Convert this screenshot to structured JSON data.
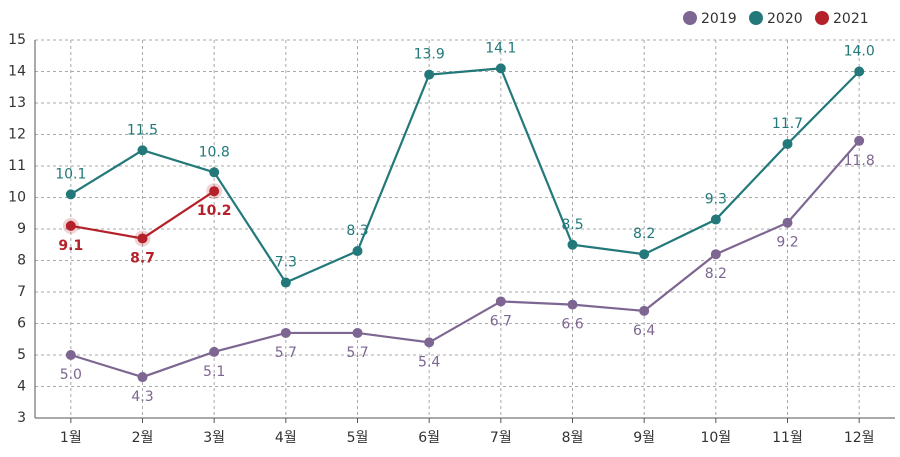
{
  "chart_data": {
    "type": "line",
    "categories": [
      "1월",
      "2월",
      "3월",
      "4월",
      "5월",
      "6월",
      "7월",
      "8월",
      "9월",
      "10월",
      "11월",
      "12월"
    ],
    "series": [
      {
        "name": "2019",
        "color": "#7d6691",
        "values": [
          5.0,
          4.3,
          5.1,
          5.7,
          5.7,
          5.4,
          6.7,
          6.6,
          6.4,
          8.2,
          9.2,
          11.8
        ],
        "value_labels": [
          "5.0",
          "4.3",
          "5.1",
          "5.7",
          "5.7",
          "5.4",
          "6.7",
          "6.6",
          "6.4",
          "8.2",
          "9.2",
          "11.8"
        ]
      },
      {
        "name": "2020",
        "color": "#23797a",
        "values": [
          10.1,
          11.5,
          10.8,
          7.3,
          8.3,
          13.9,
          14.1,
          8.5,
          8.2,
          9.3,
          11.7,
          14.0
        ],
        "value_labels": [
          "10.1",
          "11.5",
          "10.8",
          "7.3",
          "8.3",
          "13.9",
          "14.1",
          "8.5",
          "8.2",
          "9.3",
          "11.7",
          "14.0"
        ]
      },
      {
        "name": "2021",
        "color": "#b5212a",
        "values": [
          9.1,
          8.7,
          10.2,
          null,
          null,
          null,
          null,
          null,
          null,
          null,
          null,
          null
        ],
        "value_labels": [
          "9.1",
          "8.7",
          "10.2",
          null,
          null,
          null,
          null,
          null,
          null,
          null,
          null,
          null
        ]
      }
    ],
    "ylim": [
      3,
      15
    ],
    "yticks": [
      3,
      4,
      5,
      6,
      7,
      8,
      9,
      10,
      11,
      12,
      13,
      14,
      15
    ],
    "grid": true,
    "legend": "top-right"
  }
}
